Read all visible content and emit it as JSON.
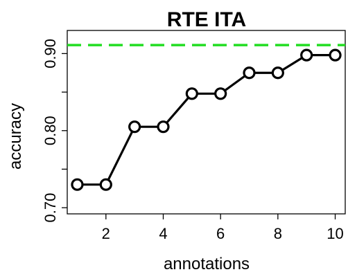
{
  "chart_data": {
    "type": "line",
    "title": "RTE ITA",
    "xlabel": "annotations",
    "ylabel": "accuracy",
    "x": [
      1,
      2,
      3,
      4,
      5,
      6,
      7,
      8,
      9,
      10
    ],
    "xlim": [
      0.65,
      10.35
    ],
    "ylim": [
      0.692,
      0.93
    ],
    "xticks": [
      2,
      4,
      6,
      8,
      10
    ],
    "yticks": [
      0.7,
      0.75,
      0.8,
      0.85,
      0.9
    ],
    "ytick_labels": [
      "0.70",
      "",
      "0.80",
      "",
      "0.90"
    ],
    "grid": false,
    "series": [
      {
        "values": [
          0.73,
          0.73,
          0.805,
          0.805,
          0.848,
          0.848,
          0.875,
          0.875,
          0.898,
          0.898
        ],
        "color": "#000000",
        "marker": "open-circle"
      }
    ],
    "reference_line": {
      "y": 0.911,
      "color": "#22dd22",
      "style": "dashed"
    }
  }
}
